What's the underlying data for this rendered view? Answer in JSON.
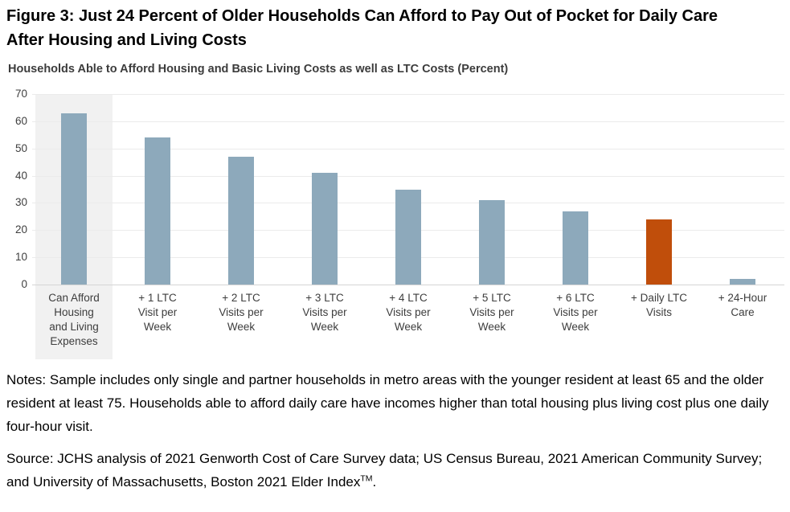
{
  "figure": {
    "title_lines": [
      "Figure 3: Just 24 Percent of Older Households Can Afford to Pay Out of Pocket for Daily Care",
      "After Housing and Living Costs"
    ]
  },
  "chart_data": {
    "type": "bar",
    "title": "Households Able to Afford Housing and Basic Living Costs as well as LTC Costs (Percent)",
    "categories": [
      "Can Afford Housing and Living Expenses",
      "+ 1 LTC Visit per Week",
      "+ 2 LTC Visits per Week",
      "+ 3 LTC Visits per Week",
      "+ 4 LTC Visits per Week",
      "+ 5 LTC Visits per Week",
      "+ 6 LTC Visits per Week",
      "+ Daily LTC Visits",
      "+ 24-Hour Care"
    ],
    "category_lines": [
      [
        "Can Afford",
        "Housing",
        "and Living",
        "Expenses"
      ],
      [
        "+ 1 LTC",
        "Visit per",
        "Week"
      ],
      [
        "+ 2 LTC",
        "Visits per",
        "Week"
      ],
      [
        "+ 3 LTC",
        "Visits per",
        "Week"
      ],
      [
        "+ 4 LTC",
        "Visits per",
        "Week"
      ],
      [
        "+ 5 LTC",
        "Visits per",
        "Week"
      ],
      [
        "+ 6 LTC",
        "Visits per",
        "Week"
      ],
      [
        "+ Daily LTC",
        "Visits"
      ],
      [
        "+ 24-Hour",
        "Care"
      ]
    ],
    "values": [
      63,
      54,
      47,
      41,
      35,
      31,
      27,
      24,
      2
    ],
    "highlight_index": 7,
    "xlabel": "",
    "ylabel": "",
    "ylim": [
      0,
      70
    ],
    "yticks": [
      0,
      10,
      20,
      30,
      40,
      50,
      60,
      70
    ],
    "grid": true,
    "legend": "none",
    "band_behind_first_category": true,
    "colors": {
      "bar": "#8da9bb",
      "highlight": "#c04e0b",
      "band": "#f1f1f1",
      "gridline": "#ebebeb",
      "baseline": "#d5d5d5"
    }
  },
  "notes": "Notes: Sample includes only single and partner households in metro areas with the younger resident at least 65 and the older resident at least 75. Households able to afford daily care have incomes higher than total housing plus living cost plus one daily four-hour visit.",
  "source": {
    "text": "Source: JCHS analysis of 2021 Genworth Cost of Care Survey data; US Census Bureau, 2021 American Community Survey; and University of Massachusetts, Boston 2021 Elder Index",
    "superscript": "TM",
    "suffix": "."
  }
}
